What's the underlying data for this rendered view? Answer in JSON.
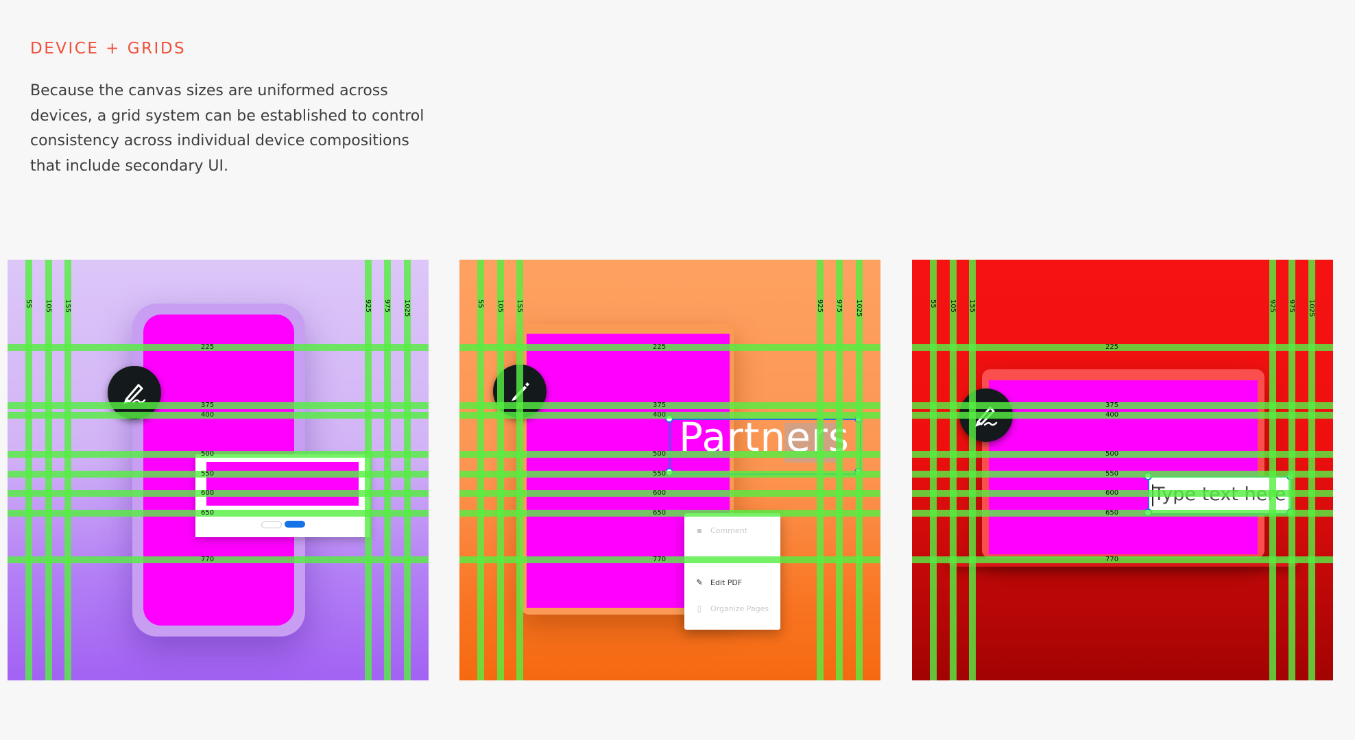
{
  "section": {
    "title": "DEVICE + GRIDS",
    "description": "Because the canvas sizes are uniformed across devices, a grid system can be established to control consistency across individual device compositions that include secondary UI."
  },
  "grid": {
    "columns": [
      "55",
      "105",
      "155",
      "925",
      "975",
      "1025"
    ],
    "rows": [
      "225",
      "375",
      "400",
      "500",
      "550",
      "600",
      "650",
      "770"
    ],
    "canvas_size": 1080
  },
  "panels": {
    "phone": {
      "fab_icon": "signature-pen-icon"
    },
    "tablet": {
      "fab_icon": "pencil-icon",
      "headline": "Partners",
      "menu": [
        {
          "label": "Comment",
          "icon": "comment-icon"
        },
        {
          "label": "Edit PDF",
          "icon": "pencil-icon"
        },
        {
          "label": "Organize Pages",
          "icon": "pages-icon"
        }
      ]
    },
    "laptop": {
      "fab_icon": "signature-pen-icon",
      "text_field": "Type text here"
    }
  },
  "colors": {
    "title": "#f0503a",
    "grid": "#56ee42",
    "screen": "#ff00ff",
    "phone_bg": "#c9a5f7",
    "tablet_bg": "#fb8d45",
    "laptop_bg": "#e00c0c",
    "selection": "#2b6be6"
  }
}
